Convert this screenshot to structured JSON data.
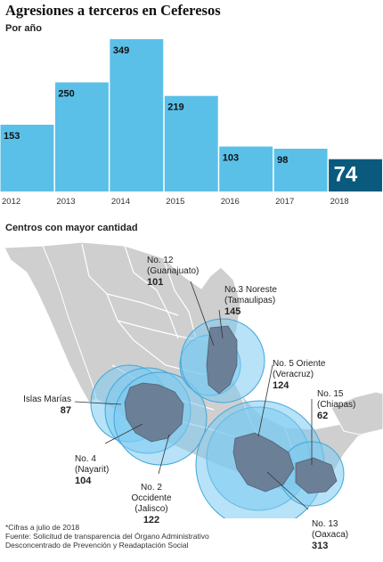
{
  "title": "Agresiones a terceros en Ceferesos",
  "subtitle": "Por año",
  "chart_data": {
    "type": "bar",
    "title": "Agresiones a terceros en Ceferesos",
    "subtitle": "Por año",
    "categories": [
      "2012",
      "2013",
      "2014",
      "2015",
      "2016",
      "2017",
      "2018"
    ],
    "values": [
      153,
      250,
      349,
      219,
      103,
      98,
      74
    ],
    "value_labels": [
      "153",
      "250",
      "349",
      "219",
      "103",
      "98",
      "74"
    ],
    "ylim": [
      0,
      349
    ],
    "grid": false,
    "colors": {
      "bar": "#5bc0e8",
      "highlight": "#0a5a7e",
      "highlight_text": "#ffffff",
      "label": "#111111"
    },
    "highlight_index": 6
  },
  "map": {
    "title": "Centros con mayor cantidad",
    "colors": {
      "land": "#cfcfcf",
      "state_border": "#ffffff",
      "region": "#6b7f96",
      "circle": "#7ccaf0",
      "circle_stroke": "#3ea7d9",
      "line": "#333333"
    },
    "centers": [
      {
        "name": "Islas Marías",
        "value": "87"
      },
      {
        "name": "No. 4\n(Nayarit)",
        "value": "104"
      },
      {
        "name": "No. 2\nOccidente\n(Jalisco)",
        "value": "122"
      },
      {
        "name": "No. 12\n(Guanajuato)",
        "value": "101"
      },
      {
        "name": "No.3 Noreste\n(Tamaulipas)",
        "value": "145"
      },
      {
        "name": "No. 5 Oriente\n(Veracruz)",
        "value": "124"
      },
      {
        "name": "No. 15\n(Chiapas)",
        "value": "62"
      },
      {
        "name": "No. 13\n(Oaxaca)",
        "value": "313"
      }
    ]
  },
  "footnote": {
    "line1": "*Cifras a julio de 2018",
    "line2": "Fuente: Solicitud de transparencia del Órgano Administrativo",
    "line3": "Desconcentrado de Prevención y Readaptación Social"
  }
}
